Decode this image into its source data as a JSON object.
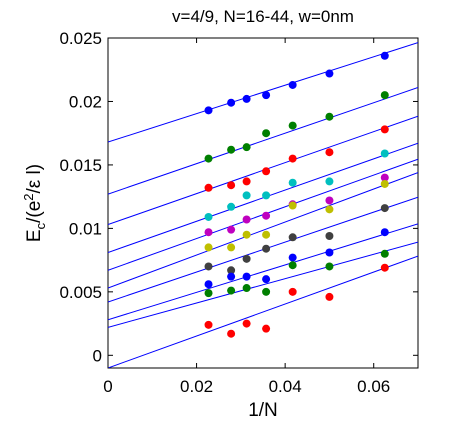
{
  "chart_data": {
    "type": "scatter",
    "title": "v=4/9, N=16-44, w=0nm",
    "xlabel": "1/N",
    "ylabel": {
      "main": "E",
      "sub": "c",
      "rest1": "/(e",
      "sup": "2",
      "rest2": "/ε l)"
    },
    "xlim": [
      0,
      0.07
    ],
    "ylim": [
      -0.001,
      0.025
    ],
    "xticks": [
      0,
      0.02,
      0.04,
      0.06
    ],
    "xtick_labels": [
      "0",
      "0.02",
      "0.04",
      "0.06"
    ],
    "yticks": [
      0,
      0.005,
      0.01,
      0.015,
      0.02,
      0.025
    ],
    "ytick_labels": [
      "0",
      "0.005",
      "0.01",
      "0.015",
      "0.02",
      "0.025"
    ],
    "grid": false,
    "fit_line_color": "#0000ff",
    "series": [
      {
        "color": "#0000ff",
        "x": [
          0.0227,
          0.0278,
          0.0313,
          0.0357,
          0.0417,
          0.05,
          0.0625
        ],
        "y": [
          0.0193,
          0.0199,
          0.0202,
          0.0205,
          0.0213,
          0.0222,
          0.0236
        ],
        "fit": [
          0.0168,
          0.112
        ]
      },
      {
        "color": "#007f00",
        "x": [
          0.0227,
          0.0278,
          0.0313,
          0.0357,
          0.0417,
          0.05,
          0.0625
        ],
        "y": [
          0.0155,
          0.0162,
          0.0164,
          0.0175,
          0.0181,
          0.0188,
          0.0205
        ],
        "fit": [
          0.0127,
          0.12
        ]
      },
      {
        "color": "#ff0000",
        "x": [
          0.0227,
          0.0278,
          0.0313,
          0.0357,
          0.0417,
          0.05,
          0.0625
        ],
        "y": [
          0.0132,
          0.0134,
          0.0137,
          0.0145,
          0.0155,
          0.016,
          0.0178
        ],
        "fit": [
          0.0103,
          0.122
        ]
      },
      {
        "color": "#00bfbf",
        "x": [
          0.0227,
          0.0278,
          0.0313,
          0.0357,
          0.0417,
          0.05,
          0.0625
        ],
        "y": [
          0.0109,
          0.0117,
          0.0126,
          0.0126,
          0.0136,
          0.0137,
          0.0159
        ],
        "fit": [
          0.0081,
          0.123
        ]
      },
      {
        "color": "#bf00bf",
        "x": [
          0.0227,
          0.0278,
          0.0313,
          0.0357,
          0.0417,
          0.05,
          0.0625
        ],
        "y": [
          0.0097,
          0.0099,
          0.0107,
          0.011,
          0.0119,
          0.0122,
          0.014
        ],
        "fit": [
          0.0067,
          0.125
        ]
      },
      {
        "color": "#bfbf00",
        "x": [
          0.0227,
          0.0278,
          0.0313,
          0.0357,
          0.0417,
          0.05,
          0.0625
        ],
        "y": [
          0.0085,
          0.0085,
          0.0095,
          0.0095,
          0.0118,
          0.0115,
          0.0135
        ],
        "fit": [
          0.0053,
          0.13
        ]
      },
      {
        "color": "#404040",
        "x": [
          0.0227,
          0.0278,
          0.0313,
          0.0357,
          0.0417,
          0.05,
          0.0625
        ],
        "y": [
          0.007,
          0.0067,
          0.0076,
          0.0084,
          0.0093,
          0.0094,
          0.0116
        ],
        "fit": [
          0.0042,
          0.118
        ]
      },
      {
        "color": "#0000ff",
        "x": [
          0.0227,
          0.0278,
          0.0313,
          0.0357,
          0.0417,
          0.05,
          0.0625
        ],
        "y": [
          0.0056,
          0.0062,
          0.0062,
          0.006,
          0.0077,
          0.0081,
          0.0097
        ],
        "fit": [
          0.0028,
          0.108
        ]
      },
      {
        "color": "#007f00",
        "x": [
          0.0227,
          0.0278,
          0.0313,
          0.0357,
          0.0417,
          0.05,
          0.0625
        ],
        "y": [
          0.0049,
          0.0051,
          0.0053,
          0.005,
          0.0071,
          0.007,
          0.008
        ],
        "fit": [
          0.0022,
          0.096
        ]
      },
      {
        "color": "#ff0000",
        "x": [
          0.0227,
          0.0278,
          0.0313,
          0.0357,
          0.0417,
          0.05
        ],
        "y": [
          0.0024,
          0.0017,
          0.0025,
          0.0021,
          0.005,
          0.0046
        ],
        "fit": [
          -0.001,
          0.126
        ]
      }
    ],
    "extra_points": [
      {
        "color": "#ff0000",
        "x": 0.0625,
        "y": 0.0069
      }
    ]
  }
}
